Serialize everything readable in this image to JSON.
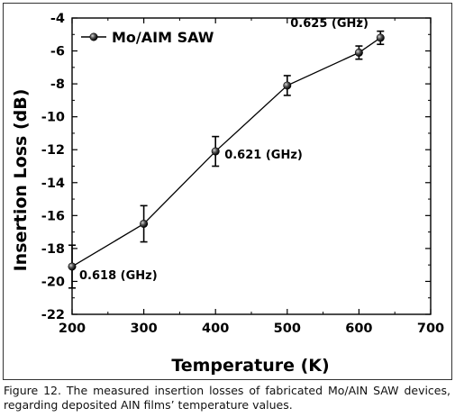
{
  "chart_data": {
    "type": "line",
    "x": [
      200,
      300,
      400,
      500,
      600,
      630
    ],
    "series": [
      {
        "name": "Mo/AIM SAW",
        "values": [
          -19.1,
          -16.5,
          -12.1,
          -8.1,
          -6.1,
          -5.2
        ],
        "error": [
          1.3,
          1.1,
          0.9,
          0.6,
          0.4,
          0.4
        ],
        "color": "#000000",
        "marker": "sphere"
      }
    ],
    "annotations": [
      {
        "x": 200,
        "y": -19.1,
        "text": "0.618 (GHz)"
      },
      {
        "x": 400,
        "y": -12.1,
        "text": "0.621 (GHz)"
      },
      {
        "x": 630,
        "y": -5.2,
        "text": "0.625 (GHz)"
      }
    ],
    "xlabel": "Temperature (K)",
    "ylabel": "Insertion Loss (dB)",
    "xlim": [
      200,
      700
    ],
    "ylim": [
      -22,
      -4
    ],
    "xticks": [
      "200",
      "300",
      "400",
      "500",
      "600",
      "700"
    ],
    "yticks": [
      "-4",
      "-6",
      "-8",
      "-10",
      "-12",
      "-14",
      "-16",
      "-18",
      "-20",
      "-22"
    ],
    "grid": false,
    "legend": "top-left"
  },
  "caption": "Figure 12. The measured insertion losses of fabricated Mo/AIN SAW devices, regarding deposited AIN films’ temperature values."
}
